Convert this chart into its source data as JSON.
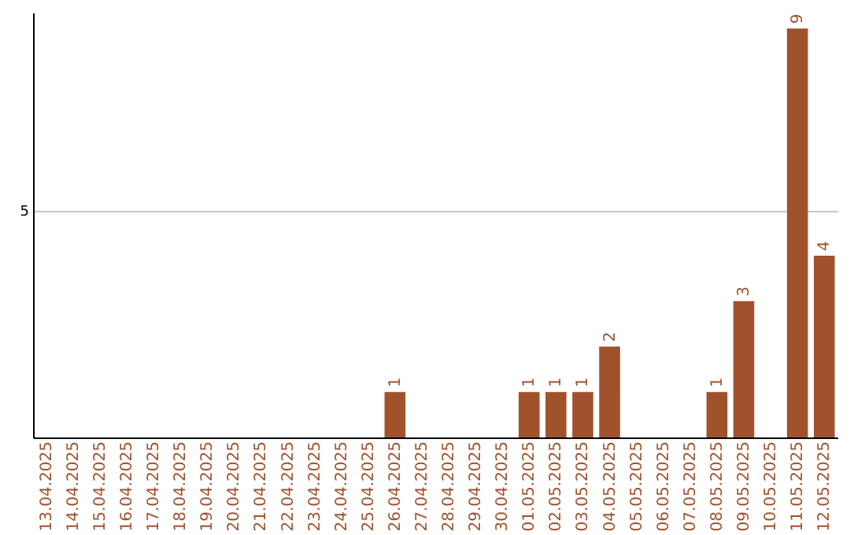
{
  "chart_data": {
    "type": "bar",
    "categories": [
      "13.04.2025",
      "14.04.2025",
      "15.04.2025",
      "16.04.2025",
      "17.04.2025",
      "18.04.2025",
      "19.04.2025",
      "20.04.2025",
      "21.04.2025",
      "22.04.2025",
      "23.04.2025",
      "24.04.2025",
      "25.04.2025",
      "26.04.2025",
      "27.04.2025",
      "28.04.2025",
      "29.04.2025",
      "30.04.2025",
      "01.05.2025",
      "02.05.2025",
      "03.05.2025",
      "04.05.2025",
      "05.05.2025",
      "06.05.2025",
      "07.05.2025",
      "08.05.2025",
      "09.05.2025",
      "10.05.2025",
      "11.05.2025",
      "12.05.2025"
    ],
    "values": [
      null,
      null,
      null,
      null,
      null,
      null,
      null,
      null,
      null,
      null,
      null,
      null,
      null,
      1,
      null,
      null,
      null,
      null,
      1,
      1,
      1,
      2,
      null,
      null,
      null,
      1,
      3,
      null,
      9,
      4
    ],
    "value_labels": [
      null,
      null,
      null,
      null,
      null,
      null,
      null,
      null,
      null,
      null,
      null,
      null,
      null,
      "1",
      null,
      null,
      null,
      null,
      "1",
      "1",
      "1",
      "2",
      null,
      null,
      null,
      "1",
      "3",
      null,
      "9",
      "4"
    ],
    "color": "#a0522d",
    "ylim": [
      0,
      9.35
    ],
    "yticks": [
      5
    ],
    "grid": "y"
  }
}
